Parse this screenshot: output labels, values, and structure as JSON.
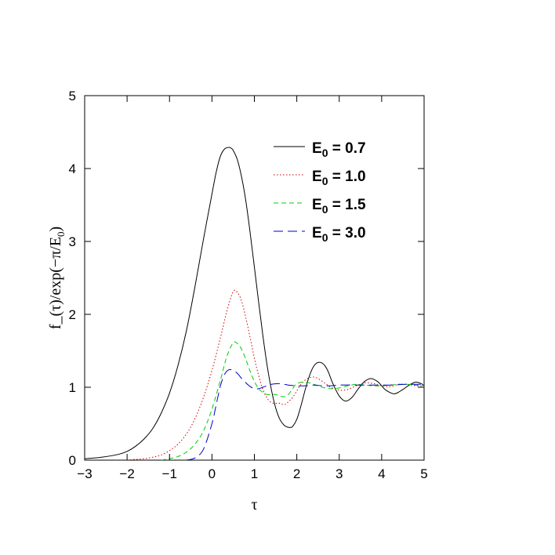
{
  "chart_data": {
    "type": "line",
    "title": "",
    "xlabel": "τ",
    "ylabel": "f_(τ)/exp(−π/E",
    "ylabel_sub": "0",
    "ylabel_end": ")",
    "xlim": [
      -3,
      5
    ],
    "ylim": [
      0,
      5
    ],
    "x_ticks": [
      -3,
      -2,
      -1,
      0,
      1,
      2,
      3,
      4,
      5
    ],
    "x_tick_labels": [
      "−3",
      "−2",
      "−1",
      "0",
      "1",
      "2",
      "3",
      "4",
      "5"
    ],
    "y_ticks": [
      0,
      1,
      2,
      3,
      4,
      5
    ],
    "y_tick_labels": [
      "0",
      "1",
      "2",
      "3",
      "4",
      "5"
    ],
    "grid": false,
    "legend_position": "top-right",
    "series": [
      {
        "name_prefix": "E",
        "name_sub": "0",
        "name_suffix": " = 0.7",
        "color": "#000000",
        "dash": "solid",
        "x": [
          -3.0,
          -2.6,
          -2.2,
          -2.0,
          -1.8,
          -1.6,
          -1.4,
          -1.2,
          -1.0,
          -0.8,
          -0.6,
          -0.4,
          -0.2,
          0.0,
          0.1,
          0.2,
          0.3,
          0.4,
          0.45,
          0.5,
          0.6,
          0.7,
          0.8,
          0.9,
          1.0,
          1.1,
          1.2,
          1.3,
          1.4,
          1.5,
          1.6,
          1.7,
          1.8,
          1.85,
          1.9,
          2.0,
          2.1,
          2.2,
          2.3,
          2.4,
          2.5,
          2.6,
          2.68,
          2.75,
          2.85,
          3.0,
          3.15,
          3.3,
          3.45,
          3.6,
          3.75,
          3.9,
          4.0,
          4.1,
          4.3,
          4.5,
          4.65,
          4.8,
          4.93,
          5.0
        ],
        "y": [
          0.02,
          0.04,
          0.08,
          0.12,
          0.19,
          0.29,
          0.43,
          0.64,
          0.92,
          1.3,
          1.78,
          2.38,
          3.03,
          3.65,
          3.95,
          4.17,
          4.27,
          4.29,
          4.28,
          4.25,
          4.12,
          3.88,
          3.55,
          3.12,
          2.65,
          2.17,
          1.71,
          1.3,
          0.97,
          0.72,
          0.56,
          0.48,
          0.45,
          0.45,
          0.46,
          0.56,
          0.75,
          0.97,
          1.16,
          1.29,
          1.34,
          1.33,
          1.28,
          1.2,
          1.05,
          0.88,
          0.81,
          0.86,
          0.98,
          1.08,
          1.12,
          1.08,
          1.02,
          0.96,
          0.91,
          0.97,
          1.03,
          1.07,
          1.05,
          1.02
        ]
      },
      {
        "name_prefix": "E",
        "name_sub": "0",
        "name_suffix": " = 1.0",
        "color": "#cc0000",
        "dash": "dotted",
        "x": [
          -2.0,
          -1.8,
          -1.6,
          -1.4,
          -1.2,
          -1.0,
          -0.8,
          -0.6,
          -0.4,
          -0.2,
          0.0,
          0.2,
          0.35,
          0.5,
          0.6,
          0.7,
          0.8,
          0.9,
          1.0,
          1.1,
          1.2,
          1.3,
          1.4,
          1.5,
          1.6,
          1.7,
          1.8,
          1.9,
          2.0,
          2.1,
          2.2,
          2.3,
          2.4,
          2.5,
          2.6,
          2.7,
          2.8,
          3.0,
          3.2,
          3.4,
          3.6,
          3.8,
          4.0,
          4.2,
          4.4,
          4.6,
          4.8,
          5.0
        ],
        "y": [
          0.0,
          0.01,
          0.02,
          0.04,
          0.07,
          0.13,
          0.22,
          0.36,
          0.57,
          0.86,
          1.23,
          1.68,
          2.04,
          2.31,
          2.3,
          2.18,
          1.95,
          1.68,
          1.4,
          1.16,
          0.97,
          0.85,
          0.79,
          0.78,
          0.78,
          0.76,
          0.8,
          0.86,
          0.95,
          1.04,
          1.1,
          1.13,
          1.14,
          1.12,
          1.08,
          1.04,
          1.0,
          0.96,
          0.97,
          1.02,
          1.06,
          1.05,
          1.02,
          1.01,
          1.04,
          1.04,
          1.02,
          1.02
        ]
      },
      {
        "name_prefix": "E",
        "name_sub": "0",
        "name_suffix": " = 1.5",
        "color": "#00cc00",
        "dash": "dashed",
        "x": [
          -1.2,
          -1.0,
          -0.8,
          -0.6,
          -0.4,
          -0.2,
          0.0,
          0.2,
          0.35,
          0.5,
          0.6,
          0.7,
          0.8,
          0.9,
          1.0,
          1.1,
          1.2,
          1.3,
          1.4,
          1.5,
          1.6,
          1.7,
          1.8,
          1.9,
          2.0,
          2.2,
          2.4,
          2.6,
          2.8,
          3.0,
          3.2,
          3.4,
          3.6,
          3.8,
          4.0,
          4.2,
          4.4,
          4.6,
          4.8,
          5.0
        ],
        "y": [
          0.0,
          0.02,
          0.05,
          0.11,
          0.22,
          0.4,
          0.7,
          1.1,
          1.42,
          1.61,
          1.6,
          1.52,
          1.38,
          1.22,
          1.08,
          0.98,
          0.93,
          0.9,
          0.9,
          0.9,
          0.88,
          0.87,
          0.9,
          0.98,
          1.05,
          1.07,
          1.04,
          1.0,
          0.98,
          0.99,
          1.02,
          1.04,
          1.03,
          1.02,
          1.02,
          1.03,
          1.04,
          1.04,
          1.03,
          1.02
        ]
      },
      {
        "name_prefix": "E",
        "name_sub": "0",
        "name_suffix": " = 3.0",
        "color": "#0000cc",
        "dash": "longdash",
        "x": [
          -0.6,
          -0.4,
          -0.2,
          0.0,
          0.1,
          0.2,
          0.3,
          0.4,
          0.5,
          0.6,
          0.7,
          0.8,
          0.9,
          1.0,
          1.1,
          1.2,
          1.4,
          1.6,
          1.8,
          2.0,
          2.2,
          2.4,
          2.6,
          2.8,
          3.0,
          3.4,
          3.8,
          4.2,
          4.6,
          5.0
        ],
        "y": [
          0.0,
          0.03,
          0.15,
          0.5,
          0.76,
          1.02,
          1.18,
          1.24,
          1.23,
          1.19,
          1.12,
          1.06,
          1.01,
          0.98,
          0.98,
          1.0,
          1.04,
          1.05,
          1.03,
          1.02,
          1.02,
          1.03,
          1.02,
          1.02,
          1.03,
          1.03,
          1.03,
          1.03,
          1.04,
          1.04
        ]
      }
    ]
  }
}
